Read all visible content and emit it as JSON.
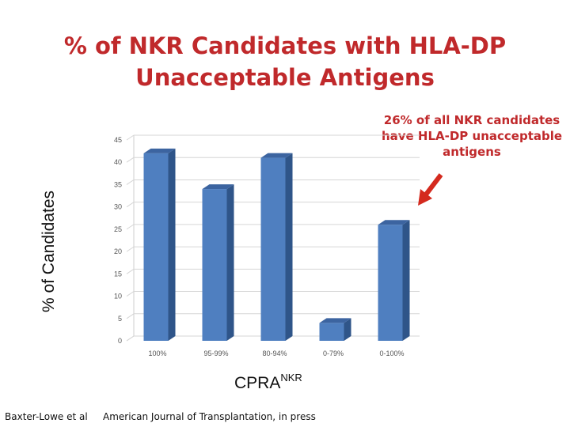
{
  "slide": {
    "title": "% of NKR Candidates with HLA-DP Unacceptable Antigens",
    "annotation": "26% of all NKR candidates have HLA-DP unacceptable antigens",
    "footer_left": "Baxter-Lowe et al",
    "footer_right": "American Journal of Transplantation, in press"
  },
  "chart_data": {
    "type": "bar",
    "title": "% of NKR Candidates with HLA-DP Unacceptable Antigens",
    "xlabel": "CPRA",
    "xlabel_superscript": "NKR",
    "ylabel": "% of Candidates",
    "categories": [
      "100%",
      "95-99%",
      "80-94%",
      "0-79%",
      "0-100%"
    ],
    "values": [
      42,
      34,
      41,
      4,
      26
    ],
    "ylim": [
      0,
      45
    ],
    "yticks": [
      0,
      5,
      10,
      15,
      20,
      25,
      30,
      35,
      40,
      45
    ],
    "grid": true,
    "style": "3d-column",
    "colors": {
      "bar_front": "#4f7fc0",
      "bar_side": "#2f5589",
      "bar_top": "#3c64a0",
      "accent": "#c0292b"
    }
  }
}
